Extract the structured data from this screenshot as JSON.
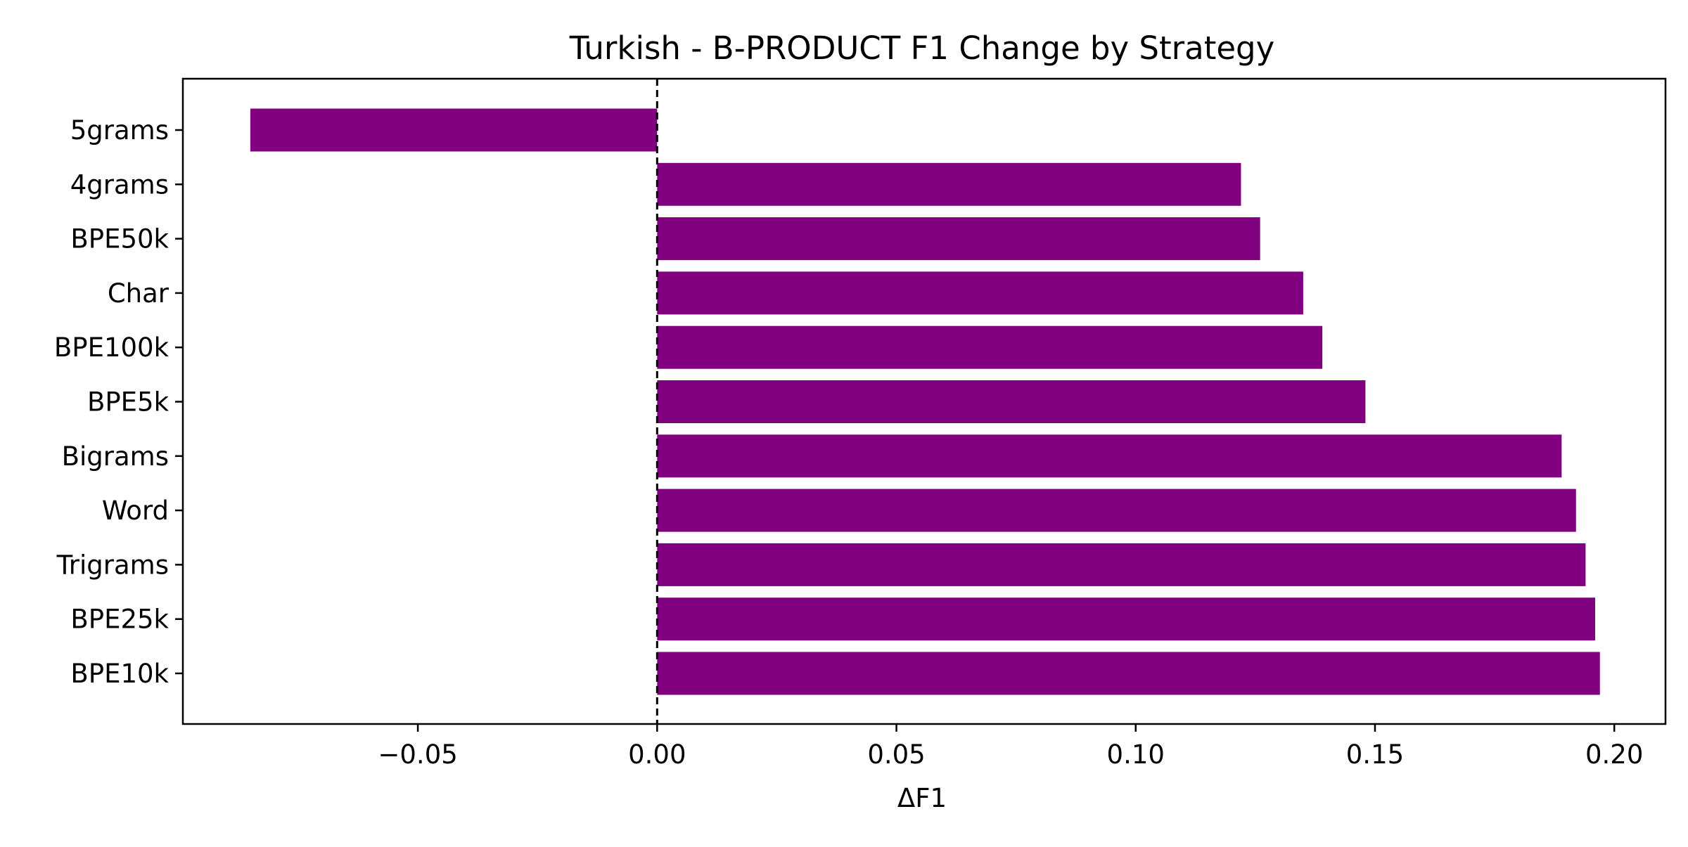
{
  "chart_data": {
    "type": "bar",
    "orientation": "horizontal",
    "title": "Turkish - B-PRODUCT F1 Change by Strategy",
    "xlabel": "ΔF1",
    "ylabel": "",
    "categories": [
      "5grams",
      "4grams",
      "BPE50k",
      "Char",
      "BPE100k",
      "BPE5k",
      "Bigrams",
      "Word",
      "Trigrams",
      "BPE25k",
      "BPE10k"
    ],
    "values": [
      -0.085,
      0.122,
      0.126,
      0.135,
      0.139,
      0.148,
      0.189,
      0.192,
      0.194,
      0.196,
      0.197
    ],
    "xlim": [
      -0.0991,
      0.2107
    ],
    "xticks": [
      -0.05,
      0.0,
      0.05,
      0.1,
      0.15,
      0.2
    ],
    "xtick_labels": [
      "−0.05",
      "0.00",
      "0.05",
      "0.10",
      "0.15",
      "0.20"
    ],
    "reference_line": {
      "x": 0,
      "style": "dashed"
    },
    "bar_color": "#800080",
    "grid": false,
    "legend": "none"
  }
}
